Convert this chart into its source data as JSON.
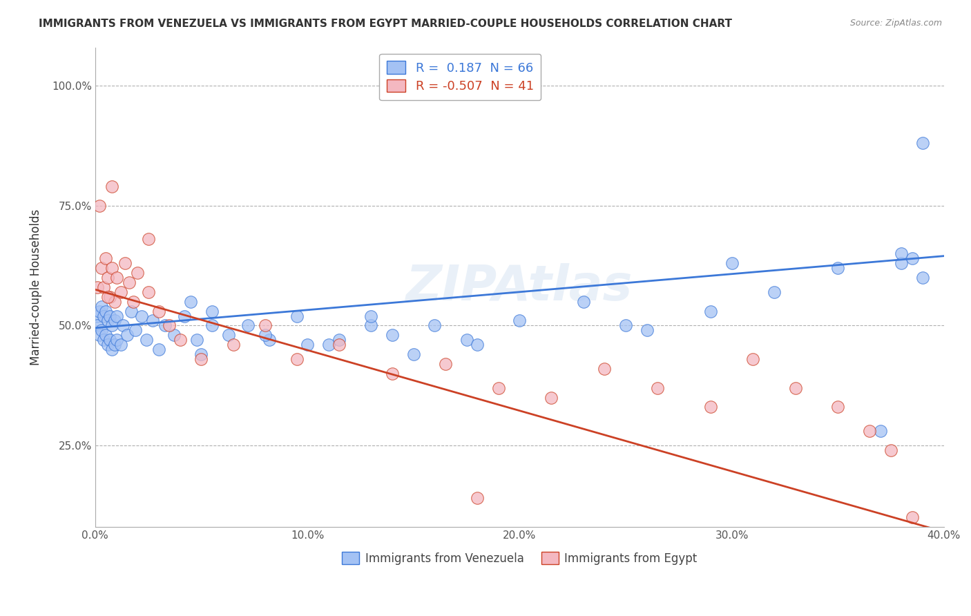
{
  "title": "IMMIGRANTS FROM VENEZUELA VS IMMIGRANTS FROM EGYPT MARRIED-COUPLE HOUSEHOLDS CORRELATION CHART",
  "source": "Source: ZipAtlas.com",
  "ylabel": "Married-couple Households",
  "legend_label1": "Immigrants from Venezuela",
  "legend_label2": "Immigrants from Egypt",
  "R1": 0.187,
  "N1": 66,
  "R2": -0.507,
  "N2": 41,
  "xlim": [
    0.0,
    0.4
  ],
  "ylim": [
    0.08,
    1.08
  ],
  "xticks": [
    0.0,
    0.1,
    0.2,
    0.3,
    0.4
  ],
  "yticks": [
    0.25,
    0.5,
    0.75,
    1.0
  ],
  "ytick_labels": [
    "25.0%",
    "50.0%",
    "75.0%",
    "100.0%"
  ],
  "xtick_labels": [
    "0.0%",
    "10.0%",
    "20.0%",
    "30.0%",
    "40.0%"
  ],
  "color_blue": "#a4c2f4",
  "color_pink": "#f4b8c1",
  "color_blue_line": "#3c78d8",
  "color_pink_line": "#cc4125",
  "background_color": "#ffffff",
  "grid_color": "#b0b0b0",
  "blue_x": [
    0.001,
    0.001,
    0.002,
    0.002,
    0.003,
    0.003,
    0.004,
    0.004,
    0.005,
    0.005,
    0.006,
    0.006,
    0.007,
    0.007,
    0.008,
    0.008,
    0.009,
    0.009,
    0.01,
    0.01,
    0.012,
    0.013,
    0.015,
    0.017,
    0.019,
    0.022,
    0.024,
    0.027,
    0.03,
    0.033,
    0.037,
    0.042,
    0.048,
    0.055,
    0.063,
    0.072,
    0.082,
    0.095,
    0.11,
    0.13,
    0.15,
    0.175,
    0.2,
    0.23,
    0.26,
    0.29,
    0.32,
    0.35,
    0.05,
    0.1,
    0.14,
    0.055,
    0.08,
    0.16,
    0.045,
    0.115,
    0.13,
    0.18,
    0.25,
    0.3,
    0.37,
    0.38,
    0.385,
    0.39,
    0.39,
    0.38
  ],
  "blue_y": [
    0.52,
    0.5,
    0.53,
    0.48,
    0.54,
    0.49,
    0.52,
    0.47,
    0.53,
    0.48,
    0.51,
    0.46,
    0.52,
    0.47,
    0.5,
    0.45,
    0.51,
    0.46,
    0.52,
    0.47,
    0.46,
    0.5,
    0.48,
    0.53,
    0.49,
    0.52,
    0.47,
    0.51,
    0.45,
    0.5,
    0.48,
    0.52,
    0.47,
    0.5,
    0.48,
    0.5,
    0.47,
    0.52,
    0.46,
    0.5,
    0.44,
    0.47,
    0.51,
    0.55,
    0.49,
    0.53,
    0.57,
    0.62,
    0.44,
    0.46,
    0.48,
    0.53,
    0.48,
    0.5,
    0.55,
    0.47,
    0.52,
    0.46,
    0.5,
    0.63,
    0.28,
    0.63,
    0.64,
    0.88,
    0.6,
    0.65
  ],
  "pink_x": [
    0.001,
    0.002,
    0.003,
    0.004,
    0.005,
    0.006,
    0.007,
    0.008,
    0.009,
    0.01,
    0.012,
    0.014,
    0.016,
    0.018,
    0.02,
    0.025,
    0.03,
    0.035,
    0.04,
    0.05,
    0.065,
    0.08,
    0.095,
    0.115,
    0.14,
    0.165,
    0.19,
    0.215,
    0.24,
    0.265,
    0.29,
    0.31,
    0.33,
    0.35,
    0.365,
    0.375,
    0.385,
    0.025,
    0.008,
    0.006,
    0.18
  ],
  "pink_y": [
    0.58,
    0.75,
    0.62,
    0.58,
    0.64,
    0.6,
    0.56,
    0.62,
    0.55,
    0.6,
    0.57,
    0.63,
    0.59,
    0.55,
    0.61,
    0.57,
    0.53,
    0.5,
    0.47,
    0.43,
    0.46,
    0.5,
    0.43,
    0.46,
    0.4,
    0.42,
    0.37,
    0.35,
    0.41,
    0.37,
    0.33,
    0.43,
    0.37,
    0.33,
    0.28,
    0.24,
    0.1,
    0.68,
    0.79,
    0.56,
    0.14
  ],
  "blue_line_x": [
    0.0,
    0.4
  ],
  "blue_line_y": [
    0.495,
    0.645
  ],
  "pink_line_x": [
    0.0,
    0.4
  ],
  "pink_line_y": [
    0.575,
    0.07
  ]
}
